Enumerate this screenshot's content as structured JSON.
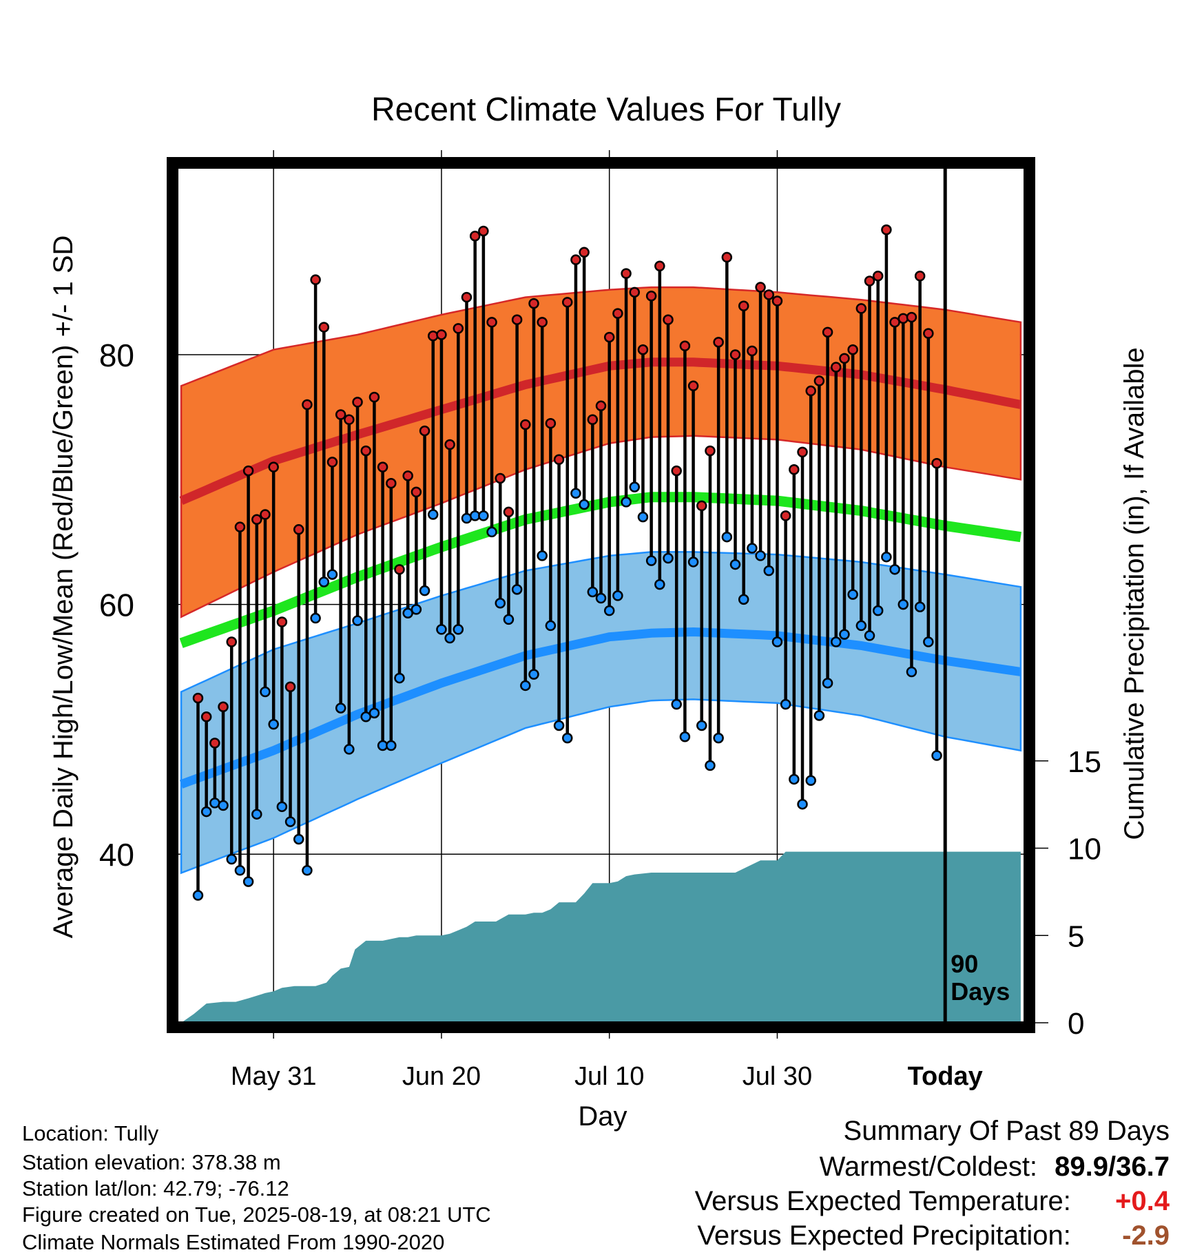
{
  "chart_data": {
    "type": "line",
    "title": "Recent Climate Values For Tully",
    "xlabel": "Day",
    "ylabel": "Average Daily High/Low/Mean (Red/Blue/Green) +/- 1 SD",
    "y2label": "Cumulative Precipitation (in), If Available",
    "x_tick_labels": [
      "May 31",
      "Jun 20",
      "Jul 10",
      "Jul 30",
      "Today"
    ],
    "x_tick_days": [
      -80,
      -60,
      -40,
      -20,
      0
    ],
    "xlim": [
      -91.5,
      9.5
    ],
    "ylim": [
      26.5,
      95
    ],
    "y_ticks": [
      40,
      60,
      80
    ],
    "y2lim": [
      0,
      49
    ],
    "y2_ticks": [
      0,
      5,
      10,
      15
    ],
    "grid": true,
    "today_marker_label": [
      "90",
      "Days"
    ],
    "normals": {
      "days": [
        -91,
        -80,
        -70,
        -60,
        -50,
        -40,
        -35,
        -30,
        -20,
        -10,
        0,
        9
      ],
      "high_mean": [
        68.3,
        71.5,
        73.6,
        75.6,
        77.6,
        79.1,
        79.4,
        79.4,
        79.1,
        78.4,
        77.2,
        76.0
      ],
      "high_upper": [
        77.5,
        80.4,
        81.6,
        83.2,
        84.6,
        85.2,
        85.4,
        85.4,
        85.0,
        84.4,
        83.6,
        82.6
      ],
      "high_lower": [
        59.0,
        62.6,
        65.6,
        68.1,
        70.8,
        72.9,
        73.4,
        73.5,
        73.2,
        72.4,
        71.0,
        70.0
      ],
      "mean_mean": [
        56.9,
        59.5,
        62.2,
        64.6,
        66.8,
        68.2,
        68.6,
        68.6,
        68.3,
        67.5,
        66.3,
        65.4
      ],
      "low_mean": [
        45.6,
        48.3,
        51.2,
        53.7,
        55.9,
        57.4,
        57.7,
        57.8,
        57.5,
        56.7,
        55.5,
        54.6
      ],
      "low_upper": [
        53.0,
        56.4,
        58.5,
        60.7,
        62.7,
        63.9,
        64.2,
        64.2,
        64.0,
        63.4,
        62.4,
        61.4
      ],
      "low_lower": [
        38.5,
        41.3,
        44.4,
        47.3,
        50.1,
        51.8,
        52.3,
        52.4,
        52.1,
        51.1,
        49.4,
        48.3
      ]
    },
    "series": [
      {
        "name": "High",
        "values": [
          52.5,
          51.0,
          48.9,
          51.8,
          57.0,
          66.2,
          70.7,
          66.8,
          67.2,
          71.0,
          58.6,
          53.4,
          66.0,
          76.0,
          86.0,
          82.2,
          71.4,
          75.2,
          74.8,
          76.2,
          72.3,
          76.6,
          71.0,
          69.7,
          62.8,
          70.3,
          69.0,
          73.9,
          81.5,
          81.6,
          72.8,
          82.1,
          84.6,
          89.5,
          89.9,
          82.6,
          70.1,
          67.4,
          82.8,
          74.4,
          84.1,
          82.6,
          74.5,
          71.6,
          84.2,
          87.6,
          88.2,
          74.8,
          75.9,
          81.4,
          83.3,
          86.5,
          85.0,
          80.4,
          84.7,
          87.1,
          82.8,
          70.7,
          80.7,
          77.5,
          67.9,
          72.3,
          81.0,
          87.8,
          80.0,
          83.9,
          80.3,
          85.4,
          84.8,
          84.3,
          67.1,
          70.8,
          72.2,
          77.1,
          77.9,
          81.8,
          79.0,
          79.7,
          80.4,
          83.7,
          85.9,
          86.3,
          90.0,
          82.6,
          82.9,
          83.0,
          86.3,
          81.7,
          71.3
        ],
        "color": "#e8262a"
      },
      {
        "name": "Low",
        "values": [
          36.7,
          43.4,
          44.1,
          43.9,
          39.6,
          38.7,
          37.8,
          43.2,
          53.0,
          50.4,
          43.8,
          42.6,
          41.2,
          38.7,
          58.9,
          61.8,
          62.4,
          51.7,
          48.4,
          58.7,
          51.0,
          51.3,
          48.7,
          48.7,
          54.1,
          59.3,
          59.6,
          61.1,
          67.2,
          58.0,
          57.3,
          58.0,
          66.9,
          67.1,
          67.1,
          65.8,
          60.1,
          58.8,
          61.2,
          53.5,
          54.4,
          63.9,
          58.3,
          50.3,
          49.3,
          68.9,
          68.0,
          61.0,
          60.5,
          59.5,
          60.7,
          68.2,
          69.4,
          67.0,
          63.5,
          61.6,
          63.7,
          52.0,
          49.4,
          63.4,
          50.3,
          47.1,
          49.3,
          65.4,
          63.2,
          60.4,
          64.5,
          63.9,
          62.7,
          57.0,
          52.0,
          46.0,
          44.0,
          45.9,
          51.1,
          53.7,
          57.0,
          57.6,
          60.8,
          58.3,
          57.5,
          59.5,
          63.8,
          62.8,
          60.0,
          54.6,
          59.8,
          57.0,
          47.9
        ],
        "color": "#1e90ff"
      },
      {
        "name": "Cumulative Precipitation",
        "days": [
          -91,
          -89.5,
          -88,
          -86,
          -84.5,
          -83,
          -81,
          -80,
          -79,
          -77.5,
          -75,
          -73.7,
          -73,
          -72,
          -71,
          -70.3,
          -69,
          -68,
          -67,
          -65,
          -64,
          -63,
          -62,
          -61,
          -60,
          -59,
          -58,
          -57,
          -56,
          -55,
          -54,
          -53.5,
          -52,
          -51.2,
          -50,
          -49,
          -48,
          -47,
          -46,
          -45,
          -44,
          -43,
          -42,
          -41,
          -40,
          -39,
          -38,
          -37,
          -35,
          -33,
          -30,
          -25,
          -22,
          -20,
          -19,
          -18,
          -15,
          -10,
          -5,
          0,
          9
        ],
        "values": [
          0,
          0.5,
          1.1,
          1.2,
          1.2,
          1.4,
          1.7,
          1.8,
          2.0,
          2.1,
          2.1,
          2.3,
          2.7,
          3.1,
          3.2,
          4.2,
          4.7,
          4.7,
          4.7,
          4.9,
          4.9,
          5.0,
          5.0,
          5.0,
          5.0,
          5.1,
          5.3,
          5.5,
          5.8,
          5.8,
          5.8,
          5.8,
          6.2,
          6.2,
          6.2,
          6.3,
          6.3,
          6.5,
          6.9,
          6.9,
          6.9,
          7.4,
          8.0,
          8.0,
          8.0,
          8.1,
          8.4,
          8.5,
          8.6,
          8.6,
          8.6,
          8.6,
          9.3,
          9.3,
          9.8,
          9.8,
          9.8,
          9.8,
          9.8,
          9.8,
          9.8
        ],
        "color": "#4a9aa5"
      }
    ]
  },
  "footer": {
    "location": "Location: Tully",
    "elevation": "Station elevation: 378.38 m",
    "latlon": "Station lat/lon: 42.79; -76.12",
    "created": "Figure created on Tue, 2025-08-19, at 08:21 UTC",
    "normals": "Climate Normals Estimated From 1990-2020"
  },
  "summary": {
    "heading": "Summary Of Past 89 Days",
    "warmest_label": "Warmest/Coldest:",
    "warmest_value": "89.9/36.7",
    "temp_label": "Versus Expected Temperature:",
    "temp_value": "+0.4",
    "temp_color": "#e41a1c",
    "precip_label": "Versus Expected Precipitation:",
    "precip_value": "-2.9",
    "precip_color": "#a0522d"
  }
}
